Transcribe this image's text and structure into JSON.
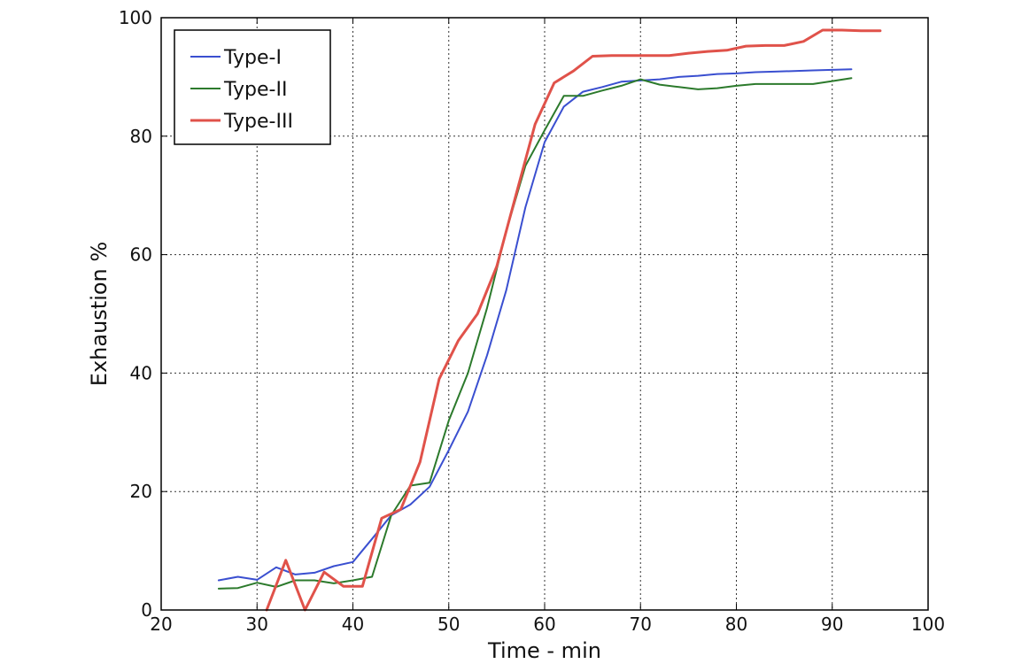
{
  "chart_data": {
    "type": "line",
    "title": "",
    "xlabel": "Time - min",
    "ylabel": "Exhaustion %",
    "xlim": [
      20,
      100
    ],
    "ylim": [
      0,
      100
    ],
    "xticks": [
      "20",
      "30",
      "40",
      "50",
      "60",
      "70",
      "80",
      "90",
      "100"
    ],
    "yticks": [
      "0",
      "20",
      "40",
      "60",
      "80",
      "100"
    ],
    "grid": true,
    "legend_position": "top-left",
    "series": [
      {
        "name": "Type-I",
        "color": "#3a4fd0",
        "x": [
          26,
          28,
          30,
          32,
          34,
          36,
          38,
          40,
          42,
          44,
          46,
          48,
          50,
          52,
          54,
          56,
          58,
          60,
          62,
          64,
          66,
          68,
          70,
          72,
          74,
          76,
          78,
          80,
          82,
          84,
          86,
          88,
          90,
          92
        ],
        "y": [
          5,
          5.6,
          5.1,
          7.2,
          6,
          6.3,
          7.4,
          8.1,
          12,
          16,
          17.8,
          20.8,
          27,
          33.5,
          43,
          54,
          68,
          79,
          85,
          87.5,
          88.3,
          89.2,
          89.4,
          89.6,
          90,
          90.2,
          90.5,
          90.6,
          90.8,
          90.9,
          91,
          91.1,
          91.2,
          91.3
        ]
      },
      {
        "name": "Type-II",
        "color": "#2c7a2c",
        "x": [
          26,
          28,
          30,
          32,
          34,
          36,
          38,
          40,
          42,
          44,
          46,
          48,
          50,
          52,
          54,
          56,
          58,
          60,
          62,
          64,
          66,
          68,
          70,
          72,
          74,
          76,
          78,
          80,
          82,
          84,
          86,
          88,
          90,
          92
        ],
        "y": [
          3.6,
          3.7,
          4.6,
          3.9,
          5,
          5,
          4.5,
          5,
          5.6,
          16,
          21,
          21.5,
          32,
          40,
          51,
          64,
          75,
          81,
          86.8,
          86.8,
          87.7,
          88.5,
          89.6,
          88.7,
          88.3,
          87.9,
          88.1,
          88.5,
          88.8,
          88.8,
          88.8,
          88.8,
          89.3,
          89.8
        ]
      },
      {
        "name": "Type-III",
        "color": "#e0524a",
        "x": [
          31,
          33,
          35,
          37,
          39,
          41,
          43,
          45,
          47,
          49,
          51,
          53,
          55,
          57,
          59,
          61,
          63,
          65,
          67,
          69,
          71,
          73,
          75,
          77,
          79,
          81,
          83,
          85,
          87,
          89,
          91,
          93,
          95
        ],
        "y": [
          0,
          8.4,
          0,
          6.4,
          4,
          4,
          15.5,
          17,
          25,
          39,
          45.5,
          50,
          58,
          70,
          82,
          89,
          91,
          93.5,
          93.6,
          93.6,
          93.6,
          93.6,
          94,
          94.3,
          94.5,
          95.2,
          95.3,
          95.3,
          96,
          97.9,
          97.9,
          97.8,
          97.8
        ]
      }
    ]
  }
}
